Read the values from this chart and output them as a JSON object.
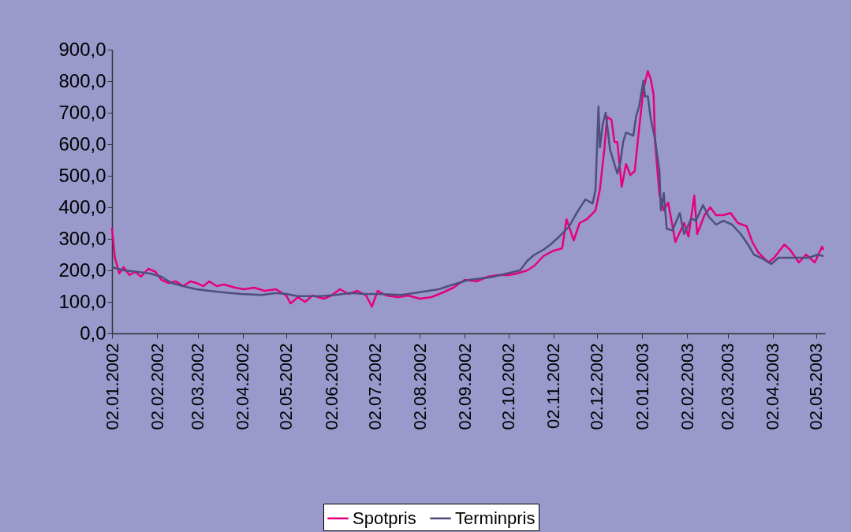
{
  "chart_data": {
    "type": "line",
    "xlim": [
      "2002-01-02",
      "2003-05-08"
    ],
    "xticks": [
      {
        "value": "2002-01-02",
        "label": "02.01.2002"
      },
      {
        "value": "2002-02-02",
        "label": "02.02.2002"
      },
      {
        "value": "2002-03-02",
        "label": "02.03.2002"
      },
      {
        "value": "2002-04-02",
        "label": "02.04.2002"
      },
      {
        "value": "2002-05-02",
        "label": "02.05.2002"
      },
      {
        "value": "2002-06-02",
        "label": "02.06.2002"
      },
      {
        "value": "2002-07-02",
        "label": "02.07.2002"
      },
      {
        "value": "2002-08-02",
        "label": "02.08.2002"
      },
      {
        "value": "2002-09-02",
        "label": "02.09.2002"
      },
      {
        "value": "2002-10-02",
        "label": "02.10.2002"
      },
      {
        "value": "2002-11-02",
        "label": "02.11.2002"
      },
      {
        "value": "2002-12-02",
        "label": "02.12.2002"
      },
      {
        "value": "2003-01-02",
        "label": "02.01.2003"
      },
      {
        "value": "2003-02-02",
        "label": "02.02.2003"
      },
      {
        "value": "2003-03-02",
        "label": "02.03.2003"
      },
      {
        "value": "2003-04-02",
        "label": "02.04.2003"
      },
      {
        "value": "2003-05-02",
        "label": "02.05.2003"
      }
    ],
    "ylim": [
      0,
      900
    ],
    "yticks": [
      {
        "value": 0,
        "label": "0,0"
      },
      {
        "value": 100,
        "label": "100,0"
      },
      {
        "value": 200,
        "label": "200,0"
      },
      {
        "value": 300,
        "label": "300,0"
      },
      {
        "value": 400,
        "label": "400,0"
      },
      {
        "value": 500,
        "label": "500,0"
      },
      {
        "value": 600,
        "label": "600,0"
      },
      {
        "value": 700,
        "label": "700,0"
      },
      {
        "value": 800,
        "label": "800,0"
      },
      {
        "value": 900,
        "label": "900,0"
      }
    ],
    "grid": false,
    "legend": "bottom",
    "marker": "none",
    "line_style": "solid",
    "series": [
      {
        "name": "Spotpris",
        "color": "#e6007e",
        "x": [
          "2002-01-02",
          "2002-01-04",
          "2002-01-07",
          "2002-01-10",
          "2002-01-14",
          "2002-01-18",
          "2002-01-22",
          "2002-01-27",
          "2002-02-01",
          "2002-02-05",
          "2002-02-10",
          "2002-02-15",
          "2002-02-20",
          "2002-02-25",
          "2002-03-01",
          "2002-03-06",
          "2002-03-10",
          "2002-03-15",
          "2002-03-20",
          "2002-03-28",
          "2002-04-03",
          "2002-04-10",
          "2002-04-17",
          "2002-04-25",
          "2002-05-02",
          "2002-05-05",
          "2002-05-10",
          "2002-05-15",
          "2002-05-20",
          "2002-05-28",
          "2002-06-02",
          "2002-06-08",
          "2002-06-14",
          "2002-06-20",
          "2002-06-26",
          "2002-06-30",
          "2002-07-04",
          "2002-07-10",
          "2002-07-18",
          "2002-07-25",
          "2002-08-02",
          "2002-08-10",
          "2002-08-18",
          "2002-08-25",
          "2002-09-02",
          "2002-09-10",
          "2002-09-18",
          "2002-09-25",
          "2002-10-02",
          "2002-10-08",
          "2002-10-15",
          "2002-10-20",
          "2002-10-26",
          "2002-11-02",
          "2002-11-08",
          "2002-11-11",
          "2002-11-16",
          "2002-11-20",
          "2002-11-25",
          "2002-12-01",
          "2002-12-04",
          "2002-12-07",
          "2002-12-09",
          "2002-12-12",
          "2002-12-14",
          "2002-12-16",
          "2002-12-19",
          "2002-12-22",
          "2002-12-25",
          "2002-12-28",
          "2002-12-31",
          "2003-01-03",
          "2003-01-06",
          "2003-01-08",
          "2003-01-10",
          "2003-01-11",
          "2003-01-14",
          "2003-01-17",
          "2003-01-20",
          "2003-01-23",
          "2003-01-25",
          "2003-01-31",
          "2003-02-03",
          "2003-02-07",
          "2003-02-09",
          "2003-02-14",
          "2003-02-18",
          "2003-02-22",
          "2003-02-27",
          "2003-03-04",
          "2003-03-09",
          "2003-03-15",
          "2003-03-19",
          "2003-03-23",
          "2003-03-30",
          "2003-04-03",
          "2003-04-10",
          "2003-04-14",
          "2003-04-20",
          "2003-04-25",
          "2003-05-01",
          "2003-05-06",
          "2003-05-07"
        ],
        "values": [
          335,
          240,
          190,
          210,
          185,
          195,
          180,
          205,
          195,
          170,
          160,
          165,
          150,
          165,
          160,
          150,
          165,
          150,
          155,
          145,
          140,
          145,
          135,
          140,
          120,
          95,
          115,
          100,
          120,
          110,
          120,
          140,
          125,
          135,
          120,
          85,
          135,
          120,
          115,
          120,
          110,
          115,
          130,
          145,
          170,
          165,
          180,
          185,
          185,
          190,
          200,
          215,
          245,
          262,
          270,
          362,
          295,
          350,
          362,
          390,
          457,
          582,
          687,
          677,
          607,
          607,
          465,
          537,
          502,
          515,
          650,
          775,
          832,
          807,
          757,
          607,
          440,
          390,
          415,
          340,
          290,
          350,
          307,
          437,
          315,
          375,
          400,
          375,
          375,
          382,
          350,
          340,
          290,
          257,
          225,
          240,
          282,
          265,
          225,
          250,
          225,
          275,
          265
        ]
      },
      {
        "name": "Terminpris",
        "color": "#4f4f7a",
        "x": [
          "2002-01-02",
          "2002-01-10",
          "2002-01-20",
          "2002-01-28",
          "2002-02-05",
          "2002-02-12",
          "2002-02-20",
          "2002-03-01",
          "2002-03-10",
          "2002-03-20",
          "2002-04-01",
          "2002-04-15",
          "2002-04-25",
          "2002-05-02",
          "2002-05-10",
          "2002-05-25",
          "2002-06-05",
          "2002-06-15",
          "2002-06-25",
          "2002-07-05",
          "2002-07-20",
          "2002-08-01",
          "2002-08-15",
          "2002-08-25",
          "2002-09-05",
          "2002-09-20",
          "2002-10-01",
          "2002-10-10",
          "2002-10-15",
          "2002-10-20",
          "2002-10-26",
          "2002-10-31",
          "2002-11-06",
          "2002-11-13",
          "2002-11-18",
          "2002-11-24",
          "2002-11-29",
          "2002-12-01",
          "2002-12-03",
          "2002-12-04",
          "2002-12-06",
          "2002-12-08",
          "2002-12-11",
          "2002-12-14",
          "2002-12-16",
          "2002-12-18",
          "2002-12-20",
          "2002-12-22",
          "2002-12-27",
          "2002-12-29",
          "2002-12-31",
          "2003-01-03",
          "2003-01-04",
          "2003-01-06",
          "2003-01-08",
          "2003-01-11",
          "2003-01-14",
          "2003-01-15",
          "2003-01-17",
          "2003-01-19",
          "2003-01-23",
          "2003-01-28",
          "2003-01-31",
          "2003-02-05",
          "2003-02-08",
          "2003-02-13",
          "2003-02-17",
          "2003-02-22",
          "2003-02-27",
          "2003-03-05",
          "2003-03-11",
          "2003-03-16",
          "2003-03-20",
          "2003-03-26",
          "2003-04-01",
          "2003-04-06",
          "2003-04-13",
          "2003-04-22",
          "2003-04-27",
          "2003-05-03",
          "2003-05-07"
        ],
        "values": [
          210,
          200,
          195,
          190,
          180,
          160,
          150,
          140,
          135,
          130,
          125,
          122,
          128,
          125,
          118,
          118,
          122,
          128,
          125,
          125,
          122,
          130,
          140,
          155,
          170,
          178,
          190,
          200,
          230,
          250,
          265,
          282,
          307,
          340,
          382,
          425,
          412,
          457,
          720,
          590,
          665,
          700,
          582,
          537,
          507,
          540,
          607,
          637,
          627,
          690,
          720,
          802,
          752,
          752,
          682,
          615,
          515,
          390,
          445,
          332,
          327,
          382,
          315,
          365,
          357,
          407,
          370,
          345,
          357,
          345,
          315,
          282,
          250,
          237,
          220,
          240,
          240,
          240,
          240,
          250,
          245
        ]
      }
    ]
  }
}
